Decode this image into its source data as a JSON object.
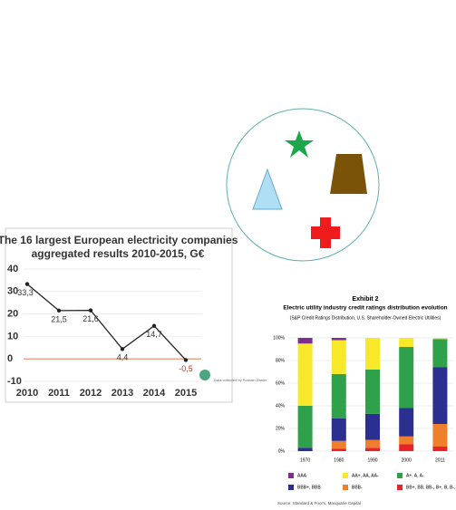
{
  "chart_data": [
    {
      "type": "line",
      "title": [
        "The 16 largest European electricity companies",
        "aggregated results 2010-2015, G€"
      ],
      "categories": [
        "2010",
        "2011",
        "2012",
        "2013",
        "2014",
        "2015"
      ],
      "values": [
        33.3,
        21.5,
        21.6,
        4.4,
        14.7,
        -0.5
      ],
      "value_labels": [
        "33,3",
        "21,5",
        "21,6",
        "4,4",
        "14,7",
        "-0,5"
      ],
      "color": "#222222",
      "ylim": [
        -10,
        40
      ],
      "yticks": [
        -10,
        0,
        10,
        20,
        30,
        40
      ],
      "grid": true,
      "note": "Data collected by Romain Zissler"
    },
    {
      "type": "stacked-bar",
      "title": "Exhibit 2",
      "subtitle": "Electric utility industry credit ratings distribution evolution",
      "note": "(S&P Credit Ratings Distribution, U.S. Shareholder-Owned Electric Utilities)",
      "source": "Source: Standard & Poor's, Macquarie Capital",
      "categories": [
        "1970",
        "1980",
        "1990",
        "2000",
        "2011"
      ],
      "series": [
        {
          "name": "BB+, BB, BB-, B+, B, B-, CCC+",
          "color": "#e8242a",
          "values": [
            0,
            2,
            3,
            6,
            4
          ]
        },
        {
          "name": "BBB-",
          "color": "#f07f2d",
          "values": [
            0,
            7,
            7,
            7,
            20
          ]
        },
        {
          "name": "BBB+, BBB",
          "color": "#2b2f8f",
          "values": [
            3,
            20,
            23,
            25,
            50
          ]
        },
        {
          "name": "A+, A, A-",
          "color": "#2fa14a",
          "values": [
            37,
            39,
            39,
            54,
            25
          ]
        },
        {
          "name": "AA+, AA, AA-",
          "color": "#f8e82a",
          "values": [
            55,
            30,
            28,
            8,
            1
          ]
        },
        {
          "name": "AAA",
          "color": "#7d2f8e",
          "values": [
            5,
            2,
            0,
            0,
            0
          ]
        }
      ],
      "ylim": [
        0,
        100
      ],
      "yticks": [
        {
          "value": 0,
          "label": "0%"
        },
        {
          "value": 20,
          "label": "20%"
        },
        {
          "value": 40,
          "label": "40%"
        },
        {
          "value": 60,
          "label": "60%"
        },
        {
          "value": 80,
          "label": "80%"
        },
        {
          "value": 100,
          "label": "100%"
        }
      ]
    }
  ]
}
